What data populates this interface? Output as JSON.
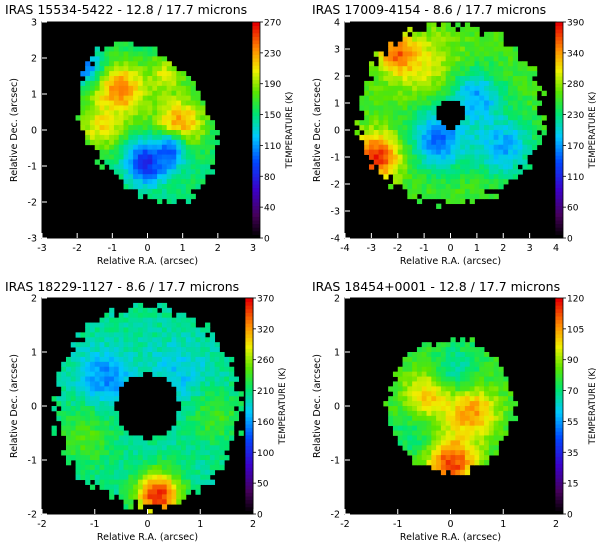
{
  "chart_data": [
    {
      "type": "heatmap",
      "title": "IRAS 15534-5422 - 12.8 / 17.7 microns",
      "xlabel": "Relative R.A. (arcsec)",
      "ylabel": "Relative Dec. (arcsec)",
      "colorbar_label": "TEMPERATURE (K)",
      "xlim": [
        -3,
        3
      ],
      "ylim": [
        -3,
        3
      ],
      "xticks": [
        -3,
        -2,
        -1,
        0,
        1,
        2,
        3
      ],
      "yticks": [
        -3,
        -2,
        -1,
        0,
        1,
        2,
        3
      ],
      "colorbar_range": [
        0,
        300
      ],
      "colorbar_ticks": [
        0,
        40,
        80,
        110,
        150,
        190,
        230,
        270
      ],
      "morphology": "elongated-blob",
      "blob_center": [
        0,
        0.2
      ],
      "blob_radii": [
        1.7,
        2.4
      ],
      "blob_rotation_deg": 35,
      "inner_hole_radius": 0,
      "base_temperature": 175,
      "features": [
        {
          "x": -0.8,
          "y": 1.1,
          "r": 0.55,
          "temp": 270
        },
        {
          "x": 0.9,
          "y": 0.2,
          "r": 0.5,
          "temp": 265
        },
        {
          "x": -1.3,
          "y": 0.1,
          "r": 0.45,
          "temp": 240
        },
        {
          "x": 0.5,
          "y": 1.5,
          "r": 0.4,
          "temp": 230
        },
        {
          "x": 0.0,
          "y": -0.9,
          "r": 0.4,
          "temp": 85
        },
        {
          "x": 0.6,
          "y": -0.6,
          "r": 0.35,
          "temp": 110
        },
        {
          "x": -1.8,
          "y": 1.8,
          "r": 0.35,
          "temp": 120
        }
      ]
    },
    {
      "type": "heatmap",
      "title": "IRAS 17009-4154 - 8.6 / 17.7 microns",
      "xlabel": "Relative R.A. (arcsec)",
      "ylabel": "Relative Dec. (arcsec)",
      "colorbar_label": "TEMPERATURE (K)",
      "xlim": [
        -4,
        4
      ],
      "ylim": [
        -4,
        4
      ],
      "xticks": [
        -4,
        -3,
        -2,
        -1,
        0,
        1,
        2,
        3,
        4
      ],
      "yticks": [
        -4,
        -3,
        -2,
        -1,
        0,
        1,
        2,
        3,
        4
      ],
      "colorbar_range": [
        0,
        390
      ],
      "colorbar_ticks": [
        0,
        60,
        110,
        170,
        230,
        280,
        340,
        390
      ],
      "morphology": "ring",
      "blob_center": [
        0,
        0.6
      ],
      "blob_radii": [
        3.5,
        3.3
      ],
      "blob_rotation_deg": 0,
      "inner_hole_radius": 0.55,
      "base_temperature": 255,
      "features": [
        {
          "x": -1.0,
          "y": 2.4,
          "r": 0.9,
          "temp": 300
        },
        {
          "x": 1.0,
          "y": 1.2,
          "r": 0.7,
          "temp": 170
        },
        {
          "x": -0.4,
          "y": -0.3,
          "r": 0.8,
          "temp": 150
        },
        {
          "x": 2.0,
          "y": -0.6,
          "r": 0.8,
          "temp": 170
        },
        {
          "x": -2.8,
          "y": -1.0,
          "r": 0.6,
          "temp": 380
        },
        {
          "x": -2.0,
          "y": 2.8,
          "r": 0.5,
          "temp": 360
        }
      ]
    },
    {
      "type": "heatmap",
      "title": "IRAS 18229-1127 - 8.6 / 17.7 microns",
      "xlabel": "Relative R.A. (arcsec)",
      "ylabel": "Relative Dec. (arcsec)",
      "colorbar_label": "TEMPERATURE (K)",
      "xlim": [
        -2,
        2
      ],
      "ylim": [
        -2,
        2
      ],
      "xticks": [
        -2,
        -1,
        0,
        1,
        2
      ],
      "yticks": [
        -2,
        -1,
        0,
        1,
        2
      ],
      "colorbar_range": [
        0,
        370
      ],
      "colorbar_ticks": [
        0,
        50,
        100,
        160,
        210,
        260,
        320,
        370
      ],
      "morphology": "ring",
      "blob_center": [
        0,
        0.0
      ],
      "blob_radii": [
        1.75,
        1.85
      ],
      "blob_rotation_deg": 0,
      "inner_hole_radius": 0.6,
      "base_temperature": 205,
      "features": [
        {
          "x": 0.2,
          "y": -1.65,
          "r": 0.3,
          "temp": 365
        },
        {
          "x": -0.8,
          "y": 0.5,
          "r": 0.35,
          "temp": 150
        },
        {
          "x": 0.6,
          "y": 0.6,
          "r": 0.4,
          "temp": 175
        },
        {
          "x": -1.2,
          "y": -0.6,
          "r": 0.4,
          "temp": 245
        },
        {
          "x": 1.3,
          "y": -0.2,
          "r": 0.35,
          "temp": 240
        }
      ]
    },
    {
      "type": "heatmap",
      "title": "IRAS 18454+0001 - 12.8 / 17.7 microns",
      "xlabel": "Relative R.A. (arcsec)",
      "ylabel": "Relative Dec. (arcsec)",
      "colorbar_label": "TEMPERATURE (K)",
      "xlim": [
        -2,
        2
      ],
      "ylim": [
        -2,
        2
      ],
      "xticks": [
        -2,
        -1,
        0,
        1,
        2
      ],
      "yticks": [
        -2,
        -1,
        0,
        1,
        2
      ],
      "colorbar_range": [
        0,
        120
      ],
      "colorbar_ticks": [
        0,
        15,
        35,
        55,
        70,
        90,
        105,
        120
      ],
      "morphology": "disk",
      "blob_center": [
        0,
        0.0
      ],
      "blob_radii": [
        1.2,
        1.25
      ],
      "blob_rotation_deg": 0,
      "inner_hole_radius": 0,
      "base_temperature": 75,
      "features": [
        {
          "x": -0.4,
          "y": 0.2,
          "r": 0.35,
          "temp": 100
        },
        {
          "x": 0.4,
          "y": -0.1,
          "r": 0.35,
          "temp": 105
        },
        {
          "x": 0.0,
          "y": -1.05,
          "r": 0.35,
          "temp": 115
        },
        {
          "x": 0.1,
          "y": 0.7,
          "r": 0.3,
          "temp": 65
        },
        {
          "x": -0.8,
          "y": -0.6,
          "r": 0.3,
          "temp": 70
        }
      ]
    }
  ]
}
